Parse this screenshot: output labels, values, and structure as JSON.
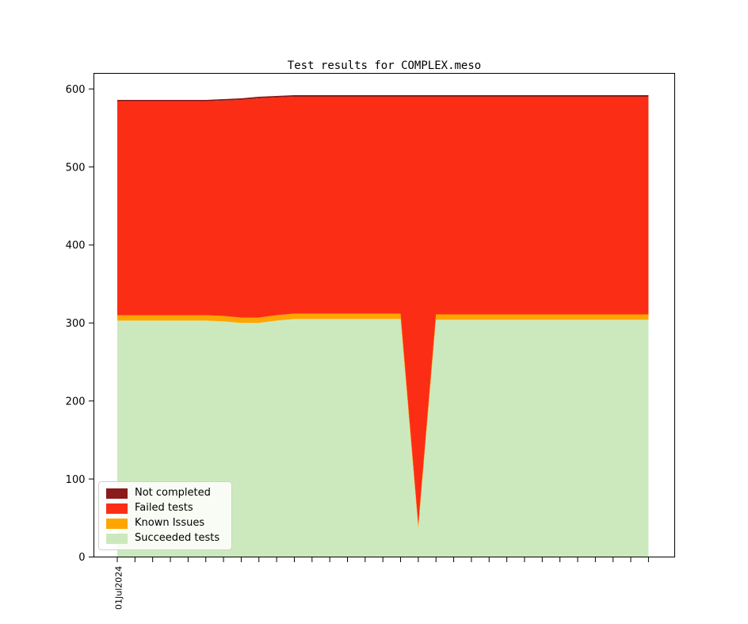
{
  "window": {
    "background": "#ffffff"
  },
  "chart_data": {
    "type": "area",
    "stacked": true,
    "title": "Test results for COMPLEX.meso",
    "grid": false,
    "x_axis": {
      "tick_count": 31,
      "first_tick_label": "01Jul2024",
      "labels_visible": [
        "01Jul2024"
      ]
    },
    "y_axis": {
      "ticks": [
        0,
        100,
        200,
        300,
        400,
        500,
        600
      ],
      "range": [
        0,
        620
      ]
    },
    "series": [
      {
        "name": "Succeeded tests",
        "color": "#cce9bd",
        "values": [
          303,
          303,
          303,
          303,
          303,
          303,
          302,
          300,
          300,
          303,
          305,
          305,
          305,
          305,
          305,
          305,
          305,
          36,
          304,
          304,
          304,
          304,
          304,
          304,
          304,
          304,
          304,
          304,
          304,
          304,
          304
        ]
      },
      {
        "name": "Known Issues",
        "color": "#ffa500",
        "values": [
          7,
          7,
          7,
          7,
          7,
          7,
          7,
          7,
          7,
          7,
          7,
          7,
          7,
          7,
          7,
          7,
          7,
          5,
          7,
          7,
          7,
          7,
          7,
          7,
          7,
          7,
          7,
          7,
          7,
          7,
          7
        ]
      },
      {
        "name": "Failed tests",
        "color": "#fb2e15",
        "values": [
          274,
          274,
          274,
          274,
          274,
          274,
          276,
          279,
          281,
          279,
          278,
          278,
          278,
          278,
          278,
          278,
          278,
          549,
          279,
          279,
          279,
          279,
          279,
          279,
          279,
          279,
          279,
          279,
          279,
          279,
          279
        ]
      },
      {
        "name": "Not completed",
        "color": "#8b1a1a",
        "values": [
          2,
          2,
          2,
          2,
          2,
          2,
          2,
          2,
          2,
          2,
          2,
          2,
          2,
          2,
          2,
          2,
          2,
          2,
          2,
          2,
          2,
          2,
          2,
          2,
          2,
          2,
          2,
          2,
          2,
          2,
          2
        ]
      }
    ],
    "legend": {
      "position": "lower-left",
      "entries": [
        {
          "label": "Not completed",
          "color": "#8b1a1a"
        },
        {
          "label": "Failed tests",
          "color": "#fb2e15"
        },
        {
          "label": "Known Issues",
          "color": "#ffa500"
        },
        {
          "label": "Succeeded tests",
          "color": "#cce9bd"
        }
      ]
    }
  }
}
